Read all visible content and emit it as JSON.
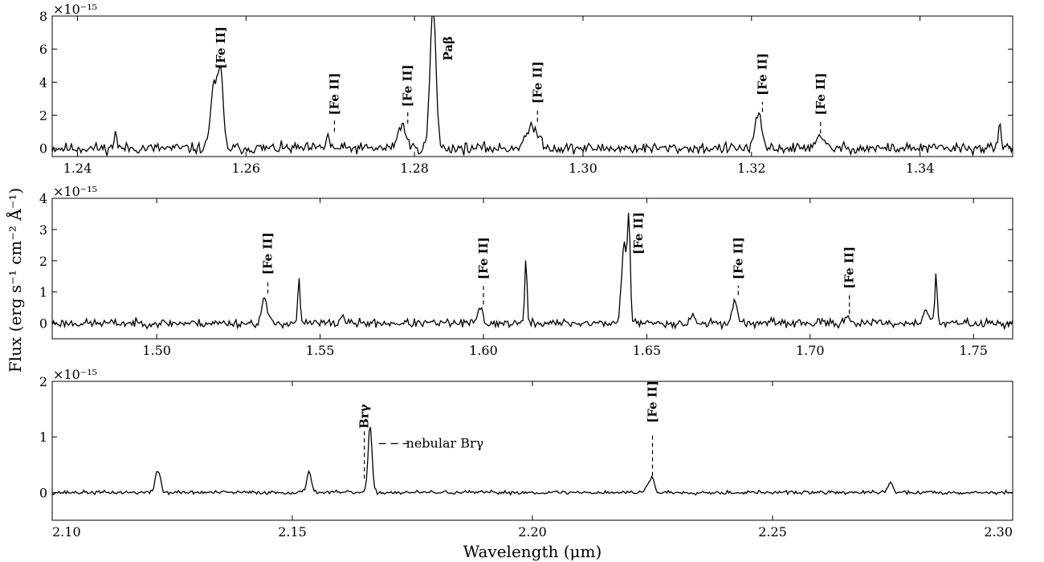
{
  "chart_data": {
    "type": "line",
    "ylabel": "Flux (erg s⁻¹ cm⁻² Å⁻¹)",
    "xlabel": "Wavelength (μm)",
    "panels": [
      {
        "id": "J",
        "multiplier": "×10⁻¹⁵",
        "xlim": [
          1.237,
          1.351
        ],
        "ylim": [
          -0.5,
          8
        ],
        "xticks": [
          1.24,
          1.26,
          1.28,
          1.3,
          1.32,
          1.34
        ],
        "xtick_labels": [
          "1.24",
          "1.26",
          "1.28",
          "1.30",
          "1.32",
          "1.34"
        ],
        "yticks": [
          0,
          2,
          4,
          6,
          8
        ],
        "ytick_labels": [
          "0",
          "2",
          "4",
          "6",
          "8"
        ],
        "noise": 0.3,
        "seed": 11,
        "lines": [
          {
            "x": 1.2445,
            "a": 1.1,
            "w": 0.00015
          },
          {
            "x": 1.2562,
            "a": 3.9,
            "w": 0.0004
          },
          {
            "x": 1.257,
            "a": 4.3,
            "w": 0.0003
          },
          {
            "x": 1.2697,
            "a": 0.8,
            "w": 0.0002
          },
          {
            "x": 1.2785,
            "a": 1.4,
            "w": 0.0005
          },
          {
            "x": 1.2822,
            "a": 8.5,
            "w": 0.00035
          },
          {
            "x": 1.294,
            "a": 1.2,
            "w": 0.0008
          },
          {
            "x": 1.3205,
            "a": 1.0,
            "w": 0.0003
          },
          {
            "x": 1.321,
            "a": 1.6,
            "w": 0.0003
          },
          {
            "x": 1.328,
            "a": 0.6,
            "w": 0.0006
          },
          {
            "x": 1.3495,
            "a": 1.6,
            "w": 0.00015
          }
        ],
        "annotations": [
          {
            "label": "[Fe II]",
            "x": 1.257,
            "ytext": 4.8,
            "tick": false
          },
          {
            "label": "[Fe II]",
            "x": 1.2705,
            "ytext": 2.0,
            "tick": true,
            "ylo": 1.0,
            "yhi": 1.7
          },
          {
            "label": "[Fe II]",
            "x": 1.2792,
            "ytext": 2.5,
            "tick": true,
            "ylo": 1.5,
            "yhi": 2.2
          },
          {
            "label": "Paβ",
            "x": 1.284,
            "ytext": 5.3,
            "tick": false
          },
          {
            "label": "[Fe II]",
            "x": 1.2946,
            "ytext": 2.7,
            "tick": true,
            "ylo": 1.6,
            "yhi": 2.4
          },
          {
            "label": "[Fe II]",
            "x": 1.3213,
            "ytext": 3.2,
            "tick": true,
            "ylo": 2.2,
            "yhi": 2.8
          },
          {
            "label": "[Fe II]",
            "x": 1.3282,
            "ytext": 2.0,
            "tick": true,
            "ylo": 0.9,
            "yhi": 1.7
          }
        ]
      },
      {
        "id": "H",
        "multiplier": "×10⁻¹⁵",
        "xlim": [
          1.468,
          1.762
        ],
        "ylim": [
          -0.5,
          4
        ],
        "xticks": [
          1.5,
          1.55,
          1.6,
          1.65,
          1.7,
          1.75
        ],
        "xtick_labels": [
          "1.50",
          "1.55",
          "1.60",
          "1.65",
          "1.70",
          "1.75"
        ],
        "yticks": [
          0,
          1,
          2,
          3,
          4
        ],
        "ytick_labels": [
          "0",
          "1",
          "2",
          "3",
          "4"
        ],
        "noise": 0.12,
        "seed": 23,
        "lines": [
          {
            "x": 1.533,
            "a": 0.8,
            "w": 0.0008
          },
          {
            "x": 1.5435,
            "a": 1.4,
            "w": 0.00035
          },
          {
            "x": 1.557,
            "a": 0.3,
            "w": 0.0005
          },
          {
            "x": 1.599,
            "a": 0.5,
            "w": 0.0007
          },
          {
            "x": 1.613,
            "a": 2.0,
            "w": 0.00035
          },
          {
            "x": 1.643,
            "a": 2.6,
            "w": 0.0007
          },
          {
            "x": 1.6445,
            "a": 3.3,
            "w": 0.00045
          },
          {
            "x": 1.664,
            "a": 0.3,
            "w": 0.0006
          },
          {
            "x": 1.677,
            "a": 0.7,
            "w": 0.0008
          },
          {
            "x": 1.7115,
            "a": 0.25,
            "w": 0.0008
          },
          {
            "x": 1.7355,
            "a": 0.45,
            "w": 0.0009
          },
          {
            "x": 1.7385,
            "a": 1.5,
            "w": 0.00035
          }
        ],
        "annotations": [
          {
            "label": "[Fe II]",
            "x": 1.534,
            "ytext": 1.55,
            "tick": true,
            "ylo": 0.95,
            "yhi": 1.35
          },
          {
            "label": "[Fe II]",
            "x": 1.6,
            "ytext": 1.4,
            "tick": true,
            "ylo": 0.6,
            "yhi": 1.2
          },
          {
            "label": "[Fe II]",
            "x": 1.6475,
            "ytext": 2.2,
            "tick": false
          },
          {
            "label": "[Fe II]",
            "x": 1.678,
            "ytext": 1.4,
            "tick": true,
            "ylo": 0.9,
            "yhi": 1.2
          },
          {
            "label": "[Fe II]",
            "x": 1.712,
            "ytext": 1.1,
            "tick": true,
            "ylo": 0.3,
            "yhi": 0.9
          }
        ]
      },
      {
        "id": "K",
        "multiplier": "×10⁻¹⁵",
        "xlim": [
          2.1,
          2.3
        ],
        "ylim": [
          -0.5,
          2
        ],
        "xticks": [
          2.1,
          2.15,
          2.2,
          2.25,
          2.3
        ],
        "xtick_labels": [
          "2.10",
          "2.15",
          "2.20",
          "2.25",
          "2.30"
        ],
        "yticks": [
          0,
          1,
          2
        ],
        "ytick_labels": [
          "0",
          "1",
          "2"
        ],
        "noise": 0.03,
        "seed": 37,
        "lines": [
          {
            "x": 2.1218,
            "a": 0.38,
            "w": 0.0004
          },
          {
            "x": 2.1225,
            "a": 0.2,
            "w": 0.0003
          },
          {
            "x": 2.1535,
            "a": 0.38,
            "w": 0.0005
          },
          {
            "x": 2.166,
            "a": 0.1,
            "w": 0.0005
          },
          {
            "x": 2.1662,
            "a": 1.1,
            "w": 0.0004
          },
          {
            "x": 2.224,
            "a": 0.15,
            "w": 0.0005
          },
          {
            "x": 2.225,
            "a": 0.25,
            "w": 0.0004
          },
          {
            "x": 2.2745,
            "a": 0.18,
            "w": 0.0005
          }
        ],
        "annotations": [
          {
            "label": "Brγ",
            "x": 2.165,
            "ytext": 1.15,
            "tick": true,
            "ylo": 0.25,
            "yhi": 1.1
          },
          {
            "label": "[Fe II]",
            "x": 2.225,
            "ytext": 1.25,
            "tick": true,
            "ylo": 0.3,
            "yhi": 1.05
          }
        ],
        "side_annotation": {
          "label": "nebular Brγ",
          "x_from": 2.168,
          "x_to": 2.174,
          "y": 0.88
        }
      }
    ]
  }
}
